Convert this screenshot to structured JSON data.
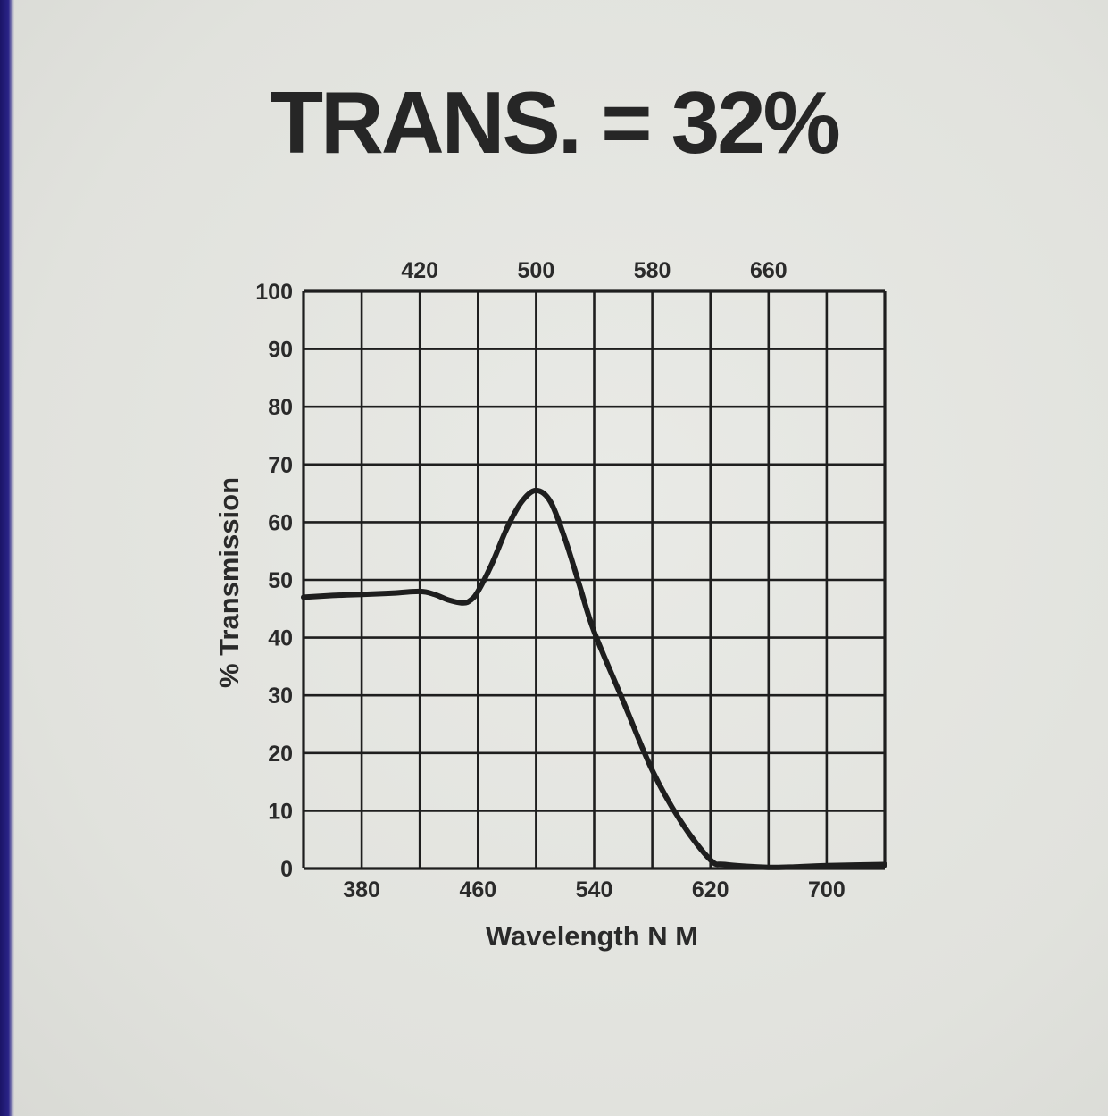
{
  "chart_data": {
    "type": "line",
    "title": "TRANS. = 32%",
    "xlabel": "Wavelength N M",
    "ylabel": "% Transmission",
    "xlim": [
      340,
      740
    ],
    "ylim": [
      0,
      100
    ],
    "x_ticks_bottom": [
      "380",
      "460",
      "540",
      "620",
      "700"
    ],
    "x_ticks_top": [
      "420",
      "500",
      "580",
      "660"
    ],
    "y_ticks": [
      "0",
      "10",
      "20",
      "30",
      "40",
      "50",
      "60",
      "70",
      "80",
      "90",
      "100"
    ],
    "grid": true,
    "colors": {
      "line": "#1e1e1e",
      "grid": "#1e1e1e",
      "text": "#2a2a2a"
    },
    "series": [
      {
        "x": [
          340,
          360,
          380,
          400,
          420,
          430,
          440,
          450,
          455,
          460,
          470,
          480,
          490,
          500,
          510,
          520,
          530,
          540,
          560,
          580,
          600,
          620,
          630,
          660,
          680,
          700,
          740
        ],
        "values": [
          47,
          47.3,
          47.5,
          47.7,
          48,
          47.5,
          46.5,
          46,
          46.5,
          48,
          53,
          59,
          63.5,
          65.5,
          63.5,
          57,
          49,
          41,
          29,
          17,
          8,
          1.5,
          0.7,
          0.2,
          0.3,
          0.5,
          0.7
        ]
      }
    ]
  }
}
